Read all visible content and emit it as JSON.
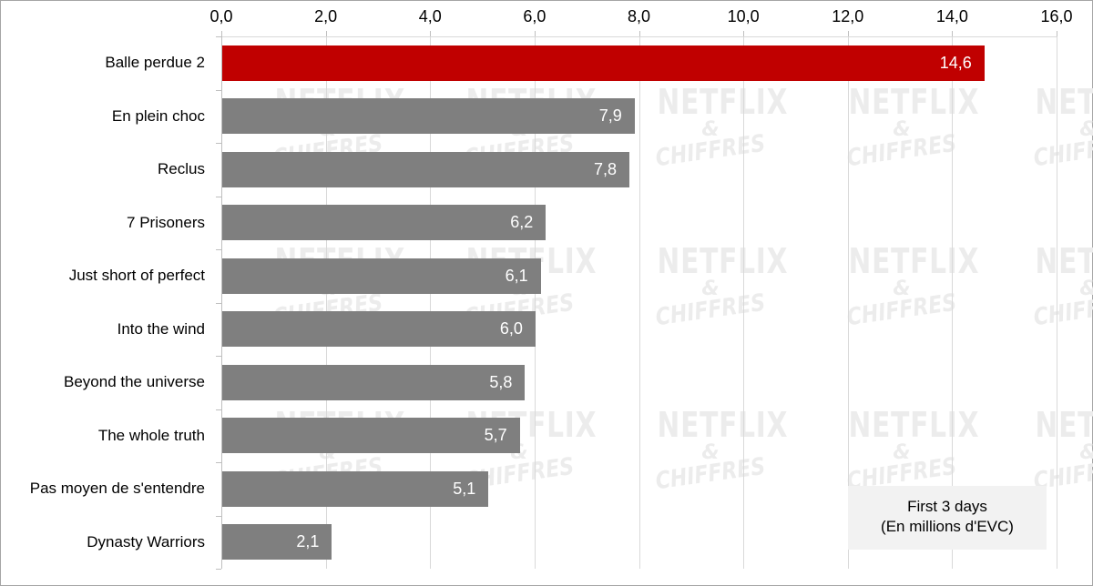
{
  "chart_data": {
    "type": "bar",
    "orientation": "horizontal",
    "title": "",
    "xlabel": "",
    "ylabel": "",
    "xlim": [
      0,
      16
    ],
    "x_ticks": [
      "0,0",
      "2,0",
      "4,0",
      "6,0",
      "8,0",
      "10,0",
      "12,0",
      "14,0",
      "16,0"
    ],
    "x_axis_position": "top",
    "grid": true,
    "categories": [
      "Balle perdue 2",
      "En plein choc",
      "Reclus",
      "7 Prisoners",
      "Just short of perfect",
      "Into the wind",
      "Beyond the universe",
      "The whole truth",
      "Pas moyen de s'entendre",
      "Dynasty Warriors"
    ],
    "values": [
      14.6,
      7.9,
      7.8,
      6.2,
      6.1,
      6.0,
      5.8,
      5.7,
      5.1,
      2.1
    ],
    "value_labels": [
      "14,6",
      "7,9",
      "7,8",
      "6,2",
      "6,1",
      "6,0",
      "5,8",
      "5,7",
      "5,1",
      "2,1"
    ],
    "colors": [
      "#c00000",
      "#7f7f7f",
      "#7f7f7f",
      "#7f7f7f",
      "#7f7f7f",
      "#7f7f7f",
      "#7f7f7f",
      "#7f7f7f",
      "#7f7f7f",
      "#7f7f7f"
    ],
    "annotation": {
      "line1": "First 3 days",
      "line2": "(En millions d'EVC)"
    }
  },
  "watermark": {
    "line1": "NETFLIX",
    "line2": "&",
    "line3": "CHIFFRES"
  },
  "colors": {
    "highlight": "#c00000",
    "bar": "#7f7f7f",
    "grid": "#d9d9d9",
    "legend_bg": "#f2f2f2"
  }
}
